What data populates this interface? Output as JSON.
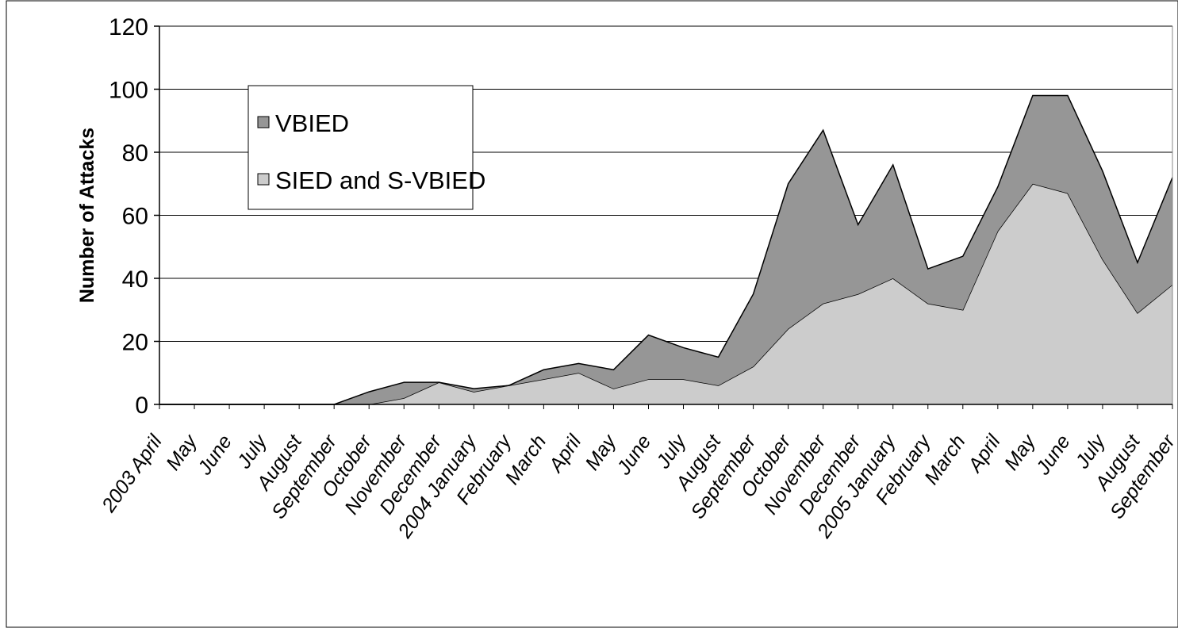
{
  "chart_data": {
    "type": "area",
    "stacked": true,
    "ylabel": "Number of Attacks",
    "xlabel": "",
    "ylim": [
      0,
      120
    ],
    "yticks": [
      0,
      20,
      40,
      60,
      80,
      100,
      120
    ],
    "grid": "horizontal",
    "legend_position": "top-left",
    "categories": [
      "2003 April",
      "May",
      "June",
      "July",
      "August",
      "September",
      "October",
      "November",
      "December",
      "2004 January",
      "February",
      "March",
      "April",
      "May",
      "June",
      "July",
      "August",
      "September",
      "October",
      "November",
      "December",
      "2005 January",
      "February",
      "March",
      "April",
      "May",
      "June",
      "July",
      "August",
      "September"
    ],
    "series": [
      {
        "name": "SIED and S-VBIED",
        "color": "#cccccc",
        "values": [
          0,
          0,
          0,
          0,
          0,
          0,
          0,
          2,
          7,
          4,
          6,
          8,
          10,
          5,
          8,
          8,
          6,
          12,
          24,
          32,
          35,
          40,
          32,
          30,
          55,
          70,
          67,
          46,
          29,
          38
        ]
      },
      {
        "name": "VBIED",
        "color": "#969696",
        "values": [
          0,
          0,
          0,
          0,
          0,
          0,
          4,
          5,
          0,
          1,
          0,
          3,
          3,
          6,
          14,
          10,
          9,
          23,
          46,
          55,
          22,
          36,
          11,
          17,
          14,
          28,
          31,
          28,
          16,
          34
        ]
      }
    ]
  }
}
